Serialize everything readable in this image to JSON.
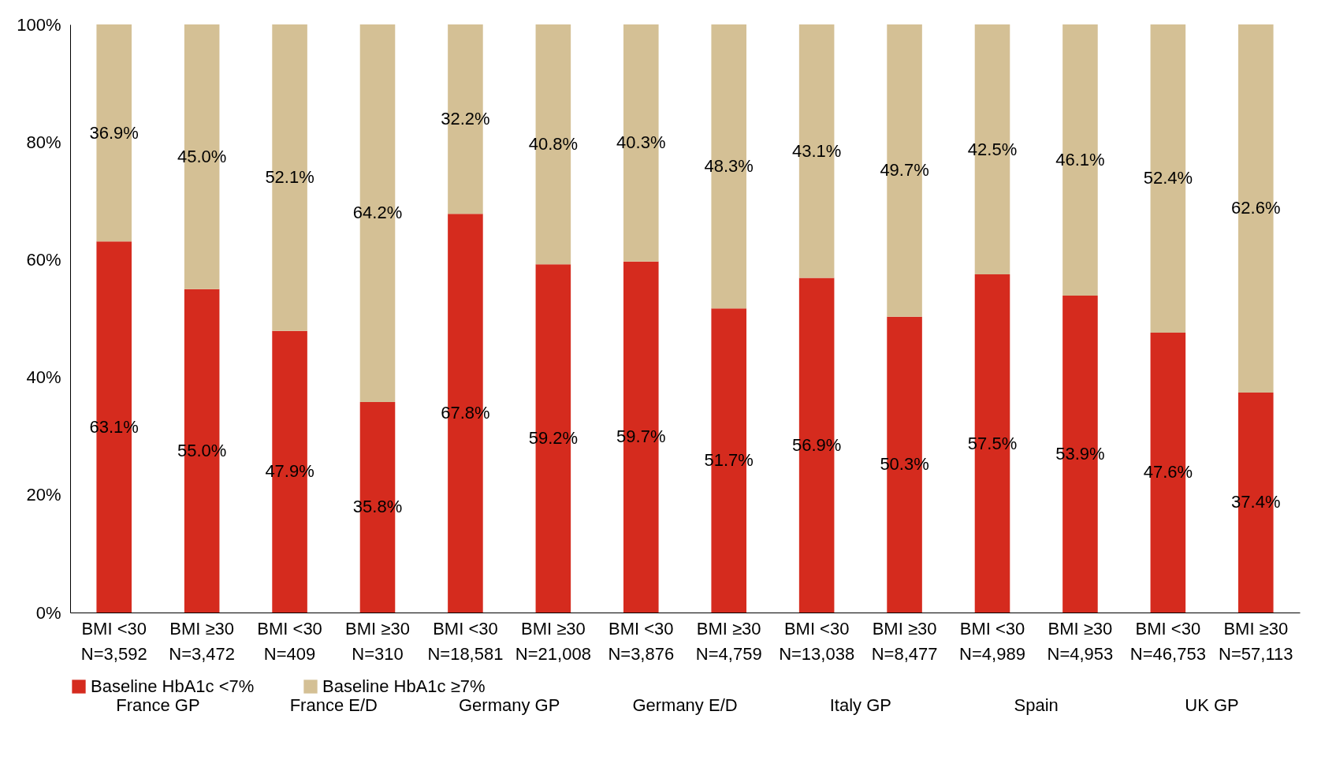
{
  "chart_data": {
    "type": "bar",
    "stacked": true,
    "categories": [
      "BMI <30\nN=3,592",
      "BMI ≥30\nN=3,472",
      "BMI <30\nN=409",
      "BMI ≥30\nN=310",
      "BMI <30\nN=18,581",
      "BMI ≥30\nN=21,008",
      "BMI <30\nN=3,876",
      "BMI ≥30\nN=4,759",
      "BMI <30\nN=13,038",
      "BMI ≥30\nN=8,477",
      "BMI <30\nN=4,989",
      "BMI ≥30\nN=4,953",
      "BMI <30\nN=46,753",
      "BMI ≥30\nN=57,113"
    ],
    "series": [
      {
        "name": "Baseline HbA1c <7%",
        "color": "#d52b1e",
        "values": [
          63.1,
          55.0,
          47.9,
          35.8,
          67.8,
          59.2,
          59.7,
          51.7,
          56.9,
          50.3,
          57.5,
          53.9,
          47.6,
          37.4
        ],
        "value_labels": [
          "63.1%",
          "55.0%",
          "47.9%",
          "35.8%",
          "67.8%",
          "59.2%",
          "59.7%",
          "51.7%",
          "56.9%",
          "50.3%",
          "57.5%",
          "53.9%",
          "47.6%",
          "37.4%"
        ]
      },
      {
        "name": "Baseline HbA1c ≥7%",
        "color": "#d4c095",
        "values": [
          36.9,
          45.0,
          52.1,
          64.2,
          32.2,
          40.8,
          40.3,
          48.3,
          43.1,
          49.7,
          42.5,
          46.1,
          52.4,
          62.6
        ],
        "value_labels": [
          "36.9%",
          "45.0%",
          "52.1%",
          "64.2%",
          "32.2%",
          "40.8%",
          "40.3%",
          "48.3%",
          "43.1%",
          "49.7%",
          "42.5%",
          "46.1%",
          "52.4%",
          "62.6%"
        ]
      }
    ],
    "annotations": [
      "France GP",
      "France E/D",
      "Germany GP",
      "Germany E/D",
      "Italy GP",
      "Spain",
      "UK GP"
    ],
    "ylim": [
      0,
      100
    ],
    "yticks": [
      {
        "value": 0,
        "label": "0%"
      },
      {
        "value": 20,
        "label": "20%"
      },
      {
        "value": 40,
        "label": "40%"
      },
      {
        "value": 60,
        "label": "60%"
      },
      {
        "value": 80,
        "label": "80%"
      },
      {
        "value": 100,
        "label": "100%"
      }
    ],
    "grid": false,
    "legend": "bottom"
  }
}
